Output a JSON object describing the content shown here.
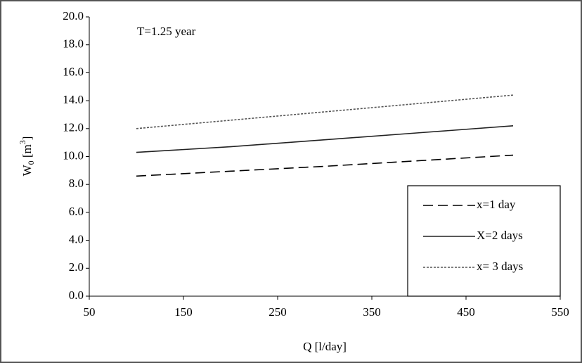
{
  "chart_data": {
    "type": "line",
    "annotation": "T=1.25 year",
    "x_label": "Q [l/day]",
    "y_label": {
      "base": "W",
      "sub": "0",
      "mid": " [m",
      "sup": "3",
      "end": "]"
    },
    "x": [
      100,
      200,
      300,
      400,
      500
    ],
    "series": [
      {
        "name": "x=1 day",
        "color": "#000000",
        "dash": "dashed",
        "values": [
          8.6,
          8.95,
          9.3,
          9.7,
          10.1
        ]
      },
      {
        "name": "X=2 days",
        "color": "#222222",
        "dash": "solid",
        "values": [
          10.3,
          10.7,
          11.2,
          11.7,
          12.2
        ]
      },
      {
        "name": "x= 3 days",
        "color": "#555555",
        "dash": "dotted",
        "values": [
          12.0,
          12.6,
          13.2,
          13.8,
          14.4
        ]
      }
    ],
    "xlim": [
      50,
      550
    ],
    "xticks": [
      50,
      150,
      250,
      350,
      450,
      550
    ],
    "ylim": [
      0,
      20
    ],
    "yticks": [
      {
        "value": 0,
        "label": "0.0"
      },
      {
        "value": 2,
        "label": "2.0"
      },
      {
        "value": 4,
        "label": "4.0"
      },
      {
        "value": 6,
        "label": "6.0"
      },
      {
        "value": 8,
        "label": "8.0"
      },
      {
        "value": 10,
        "label": "10.0"
      },
      {
        "value": 12,
        "label": "12.0"
      },
      {
        "value": 14,
        "label": "14.0"
      },
      {
        "value": 16,
        "label": "16.0"
      },
      {
        "value": 18,
        "label": "18.0"
      },
      {
        "value": 20,
        "label": "20.0"
      }
    ],
    "legend": "lower-right",
    "grid": false
  }
}
